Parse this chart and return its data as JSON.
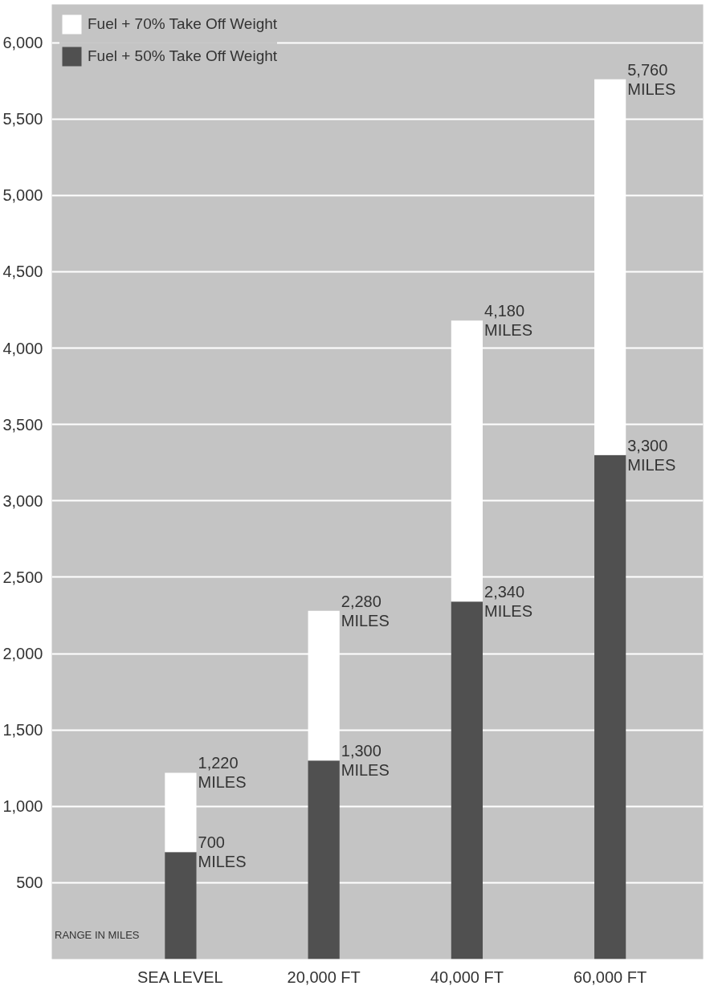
{
  "chart_data": {
    "type": "bar",
    "stacked": true,
    "totals": [
      "1,220\nMILES",
      "2,280\nMILES",
      "4,180\nMILES",
      "5,760\nMILES"
    ],
    "categories": [
      "SEA LEVEL",
      "20,000 FT",
      "40,000 FT",
      "60,000 FT"
    ],
    "series": [
      {
        "name": "Fuel + 50% Take Off Weight",
        "color": "#505050",
        "values": [
          700,
          1300,
          2340,
          3300
        ]
      },
      {
        "name": "Fuel + 70% Take Off Weight",
        "color": "#ffffff",
        "values": [
          520,
          980,
          1840,
          2460
        ]
      }
    ],
    "ylim": [
      0,
      6250
    ],
    "yticks": [
      {
        "value": 0,
        "label": null
      },
      500,
      {
        "value": 1000,
        "label": "1,000"
      },
      {
        "value": 1500,
        "label": "1,500"
      },
      {
        "value": 2000,
        "label": "2,000"
      },
      {
        "value": 2500,
        "label": "2,500"
      },
      {
        "value": 3000,
        "label": "3,000"
      },
      {
        "value": 3500,
        "label": "3,500"
      },
      {
        "value": 4000,
        "label": "4,000"
      },
      {
        "value": 4500,
        "label": "4,500"
      },
      {
        "value": 5000,
        "label": "5,000"
      },
      {
        "value": 5500,
        "label": "5,500"
      },
      {
        "value": 6000,
        "label": "6,000"
      }
    ],
    "grid": "y",
    "legend": "top left",
    "annotations": [
      "RANGE IN MILES",
      {
        "text": "700\nMILES",
        "x": "SEA LEVEL",
        "y": 700
      },
      {
        "text": "1,300\nMILES",
        "x": "20,000 FT",
        "y": 1300
      },
      {
        "text": "2,340\nMILES",
        "x": "40,000 FT",
        "y": 2340
      },
      {
        "text": "3,300\nMILES",
        "x": "60,000 FT",
        "y": 3300
      }
    ]
  }
}
